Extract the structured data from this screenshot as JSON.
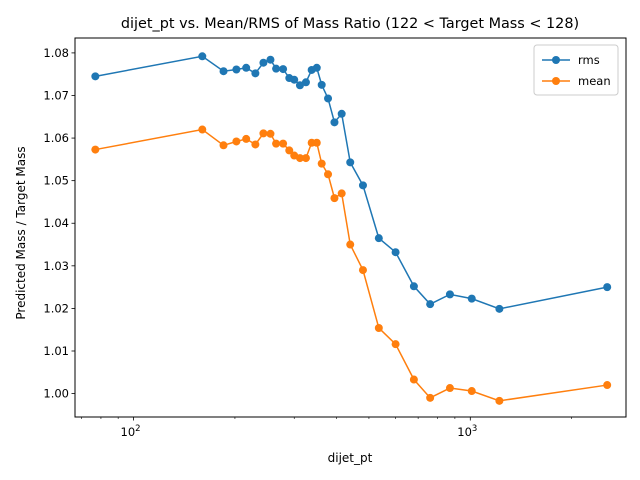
{
  "chart_data": {
    "type": "line",
    "title": "dijet_pt vs. Mean/RMS of Mass Ratio (122 < Target Mass < 128)",
    "xlabel": "dijet_pt",
    "ylabel": "Predicted Mass / Target Mass",
    "xscale": "log",
    "xlim": [
      67,
      2900
    ],
    "ylim": [
      0.9945,
      1.0835
    ],
    "grid": false,
    "legend_position": "top-right",
    "xticks": [
      {
        "value": 100,
        "base": "10",
        "exp": "2"
      },
      {
        "value": 1000,
        "base": "10",
        "exp": "3"
      }
    ],
    "yticks": [
      "1.00",
      "1.01",
      "1.02",
      "1.03",
      "1.04",
      "1.05",
      "1.06",
      "1.07",
      "1.08"
    ],
    "x": [
      77,
      160,
      185,
      202,
      216,
      230,
      243,
      255,
      265,
      278,
      290,
      300,
      312,
      325,
      338,
      350,
      362,
      378,
      395,
      415,
      440,
      480,
      535,
      600,
      680,
      760,
      870,
      1010,
      1220,
      2550
    ],
    "series": [
      {
        "name": "rms",
        "color": "#1f77b4",
        "values": [
          1.0745,
          1.0792,
          1.0757,
          1.0761,
          1.0765,
          1.0752,
          1.0777,
          1.0784,
          1.0763,
          1.0762,
          1.0741,
          1.0737,
          1.0724,
          1.0731,
          1.076,
          1.0765,
          1.0725,
          1.0693,
          1.0637,
          1.0657,
          1.0543,
          1.0489,
          1.0365,
          1.0332,
          1.0252,
          1.021,
          1.0233,
          1.0223,
          1.0199,
          1.025
        ]
      },
      {
        "name": "mean",
        "color": "#ff7f0e",
        "values": [
          1.0573,
          1.062,
          1.0583,
          1.0592,
          1.0598,
          1.0585,
          1.0611,
          1.061,
          1.0587,
          1.0587,
          1.0571,
          1.0559,
          1.0553,
          1.0553,
          1.0589,
          1.0589,
          1.054,
          1.0515,
          1.0459,
          1.047,
          1.035,
          1.029,
          1.0154,
          1.0116,
          1.0033,
          0.999,
          1.0013,
          1.0006,
          0.9983,
          1.002
        ]
      }
    ]
  }
}
